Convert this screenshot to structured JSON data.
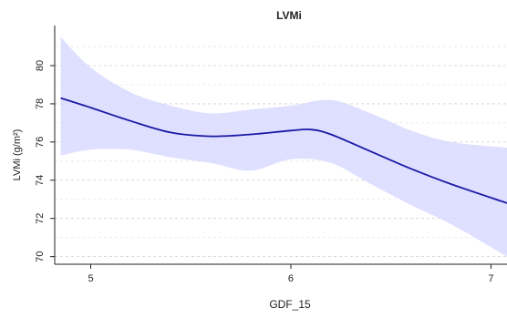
{
  "chart_data": {
    "type": "line",
    "title": "LVMi",
    "xlabel": "GDF_15",
    "ylabel": "LVMi (g/m²)",
    "xlim": [
      4.82,
      7.08
    ],
    "ylim": [
      69.6,
      82.1
    ],
    "x_ticks": [
      5,
      6,
      7
    ],
    "y_ticks": [
      70,
      72,
      74,
      76,
      78,
      80
    ],
    "grid": "horizontal dashed",
    "series": [
      {
        "kind": "line",
        "color": "#1a1aa6",
        "x": [
          4.85,
          5.0,
          5.2,
          5.4,
          5.6,
          5.8,
          6.0,
          6.1,
          6.2,
          6.4,
          6.6,
          6.8,
          7.08
        ],
        "y": [
          78.3,
          77.8,
          77.1,
          76.5,
          76.3,
          76.4,
          76.6,
          76.65,
          76.4,
          75.5,
          74.6,
          73.8,
          72.8
        ]
      },
      {
        "kind": "band",
        "color": "#d9d9ff",
        "x": [
          4.85,
          5.0,
          5.2,
          5.4,
          5.6,
          5.8,
          6.0,
          6.2,
          6.4,
          6.6,
          6.8,
          7.08
        ],
        "lower": [
          75.3,
          75.6,
          75.6,
          75.2,
          74.9,
          74.5,
          75.1,
          74.9,
          73.8,
          72.7,
          71.7,
          70.0
        ],
        "upper": [
          81.5,
          79.9,
          78.6,
          77.9,
          77.5,
          77.7,
          77.9,
          78.2,
          77.5,
          76.6,
          76.0,
          75.7
        ]
      }
    ]
  }
}
